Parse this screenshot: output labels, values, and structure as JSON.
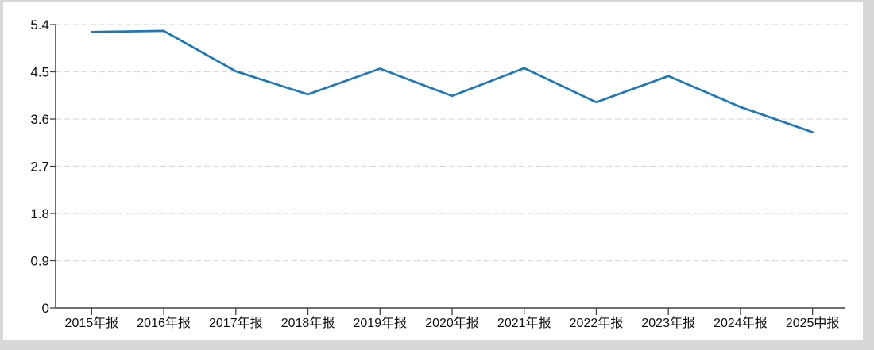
{
  "chart_data": {
    "type": "line",
    "categories": [
      "2015年报",
      "2016年报",
      "2017年报",
      "2018年报",
      "2019年报",
      "2020年报",
      "2021年报",
      "2022年报",
      "2023年报",
      "2024年报",
      "2025中报"
    ],
    "values": [
      5.26,
      5.28,
      4.51,
      4.07,
      4.56,
      4.04,
      4.57,
      3.92,
      4.42,
      3.83,
      3.35
    ],
    "title": "",
    "xlabel": "",
    "ylabel": "",
    "ylim": [
      0,
      5.4
    ],
    "yticks": [
      0,
      0.9,
      1.8,
      2.7,
      3.6,
      4.5,
      5.4
    ],
    "ytick_labels": [
      "0",
      "0.9",
      "1.8",
      "2.7",
      "3.6",
      "4.5",
      "5.4"
    ],
    "grid": "horizontal-dashed",
    "legend": "none",
    "colors": {
      "line": "#1f77b4",
      "grid": "#dadada",
      "axis": "#404040",
      "text": "#111111",
      "frame": "#d8d8d8",
      "background": "#ffffff"
    }
  }
}
